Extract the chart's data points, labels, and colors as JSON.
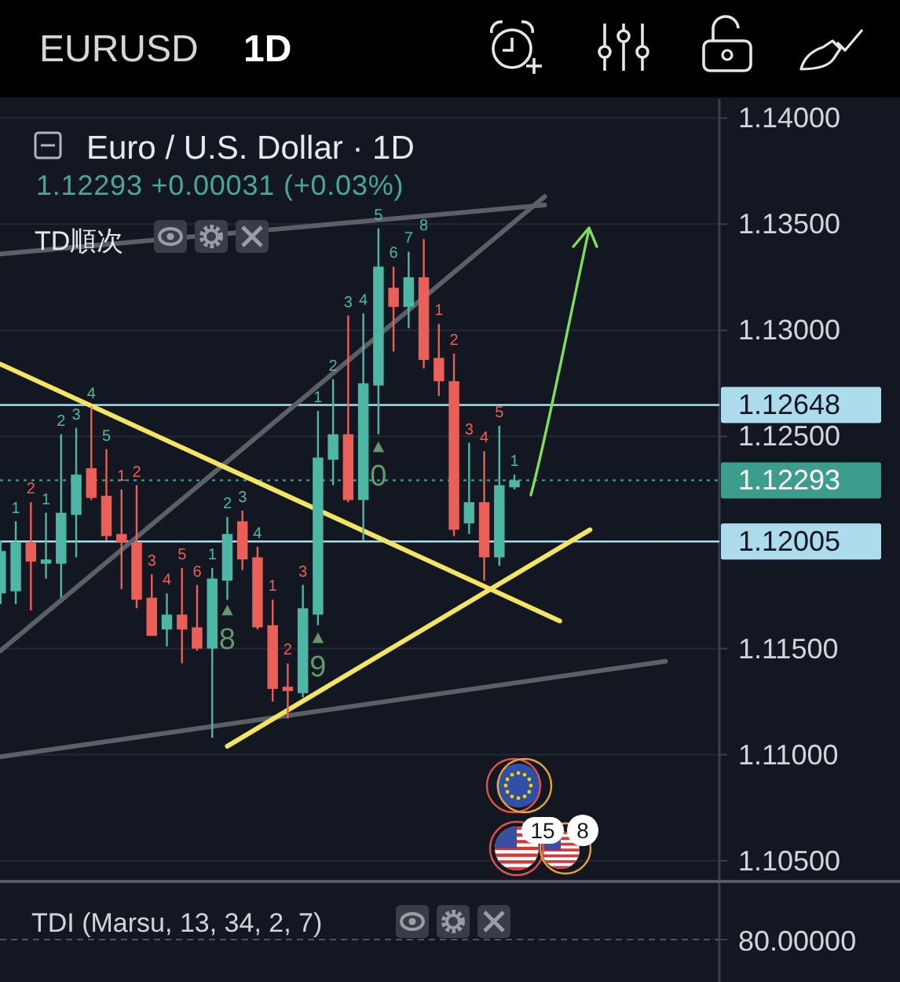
{
  "chart_data": [
    {
      "type": "candlestick",
      "title": "Euro / U.S. Dollar · 1D",
      "subtitle": "1.12293 +0.00031 (+0.03%)",
      "annotations": [
        "EURUSD",
        "1D",
        "TD順次",
        "15",
        "8",
        "8",
        "9",
        "0"
      ],
      "categories": [
        null,
        null,
        null,
        null,
        null,
        null,
        null,
        null,
        null,
        null,
        null,
        null,
        null,
        null,
        null,
        null,
        null,
        null,
        null,
        null,
        null,
        null,
        null,
        null,
        null,
        null,
        null,
        null,
        null,
        null,
        null,
        null,
        null,
        null,
        null,
        null,
        null,
        null,
        null,
        null,
        null,
        null,
        null,
        null,
        null,
        null,
        null,
        null
      ],
      "ylim": [
        1.1041,
        1.1409
      ],
      "yticks": [
        {
          "value": 1.105,
          "label": "1.10500"
        },
        {
          "value": 1.11,
          "label": "1.11000"
        },
        {
          "value": 1.115,
          "label": "1.11500"
        },
        {
          "value": 1.125,
          "label": "1.12500"
        },
        {
          "value": 1.13,
          "label": "1.13000"
        },
        {
          "value": 1.135,
          "label": "1.13500"
        },
        {
          "value": 1.14,
          "label": "1.14000"
        }
      ],
      "tick_labels": "y",
      "grid": "y",
      "ref_lines": [
        {
          "axis": "y",
          "value": 1.12648,
          "label": "1.12648",
          "color": "#acdcec"
        },
        {
          "axis": "y",
          "value": 1.12293,
          "label": "1.12293",
          "color": "#3c9d8c",
          "line_style": "dotted"
        },
        {
          "axis": "y",
          "value": 1.12005,
          "label": "1.12005",
          "color": "#acdcec"
        }
      ],
      "series": [
        {
          "type": "line",
          "color": "#5c5f68",
          "values": [
            1.1336,
            null,
            null,
            null,
            null,
            null,
            null,
            null,
            null,
            null,
            null,
            null,
            null,
            null,
            null,
            null,
            null,
            null,
            null,
            null,
            null,
            null,
            null,
            null,
            null,
            null,
            null,
            null,
            null,
            null,
            null,
            null,
            null,
            null,
            null,
            null,
            1.1359,
            null,
            null,
            null,
            null,
            null,
            null,
            null,
            null,
            null,
            null,
            null
          ]
        },
        {
          "type": "line",
          "color": "#5c5f68",
          "values": [
            1.1149,
            null,
            null,
            null,
            null,
            null,
            null,
            null,
            null,
            null,
            null,
            null,
            null,
            null,
            null,
            null,
            null,
            null,
            null,
            null,
            null,
            null,
            null,
            null,
            null,
            null,
            null,
            null,
            null,
            null,
            null,
            null,
            null,
            null,
            null,
            null,
            1.1363,
            null,
            null,
            null,
            null,
            null,
            null,
            null,
            null,
            null,
            null,
            null
          ]
        },
        {
          "type": "line",
          "color": "#5c5f68",
          "values": [
            1.1099,
            null,
            null,
            null,
            null,
            null,
            null,
            null,
            null,
            null,
            null,
            null,
            null,
            null,
            null,
            null,
            null,
            null,
            null,
            null,
            null,
            null,
            null,
            null,
            null,
            null,
            null,
            null,
            null,
            null,
            null,
            null,
            null,
            null,
            null,
            null,
            null,
            null,
            null,
            null,
            null,
            null,
            null,
            null,
            1.1144,
            null,
            null,
            null
          ]
        },
        {
          "type": "line",
          "color": "#f3e462",
          "values": [
            1.1284,
            null,
            null,
            null,
            null,
            null,
            null,
            null,
            null,
            null,
            null,
            null,
            null,
            null,
            null,
            null,
            null,
            null,
            null,
            null,
            null,
            null,
            null,
            null,
            null,
            null,
            null,
            null,
            null,
            null,
            null,
            null,
            null,
            null,
            null,
            null,
            null,
            1.1163,
            null,
            null,
            null,
            null,
            null,
            null,
            null,
            null,
            null,
            null
          ]
        },
        {
          "type": "line",
          "color": "#f3e462",
          "values": [
            null,
            null,
            null,
            null,
            null,
            null,
            null,
            null,
            null,
            null,
            null,
            null,
            null,
            null,
            null,
            1.1104,
            null,
            null,
            null,
            null,
            null,
            null,
            null,
            null,
            null,
            null,
            null,
            null,
            null,
            null,
            null,
            null,
            null,
            null,
            null,
            null,
            null,
            null,
            null,
            1.1206,
            null,
            null,
            null,
            null,
            null,
            null,
            null,
            null
          ]
        },
        {
          "type": "scatter",
          "marker": "triangle",
          "color": "#5f9a68",
          "values": [
            null,
            null,
            null,
            null,
            null,
            null,
            null,
            null,
            null,
            null,
            null,
            null,
            null,
            null,
            null,
            1.1168,
            null,
            null,
            null,
            null,
            null,
            1.1155,
            null,
            null,
            null,
            1.1245,
            null,
            null,
            null,
            null,
            null,
            null,
            null,
            null,
            null,
            null,
            null,
            null,
            null,
            null,
            null,
            null,
            null,
            null,
            null,
            null,
            null,
            null
          ]
        },
        {
          "type": "candlestick",
          "ohlc": [
            [
              1.1176,
              1.1201,
              1.1171,
              1.1196
            ],
            [
              1.1177,
              1.121,
              1.1171,
              1.12
            ],
            [
              1.12,
              1.1219,
              1.1168,
              1.1191
            ],
            [
              1.119,
              1.1214,
              1.1183,
              1.1192
            ],
            [
              1.119,
              1.1251,
              1.1174,
              1.1214
            ],
            [
              1.1213,
              1.1254,
              1.1193,
              1.1232
            ],
            [
              1.1235,
              1.1264,
              1.122,
              1.1221
            ],
            [
              1.1222,
              1.1244,
              1.1201,
              1.1203
            ],
            [
              1.1204,
              1.1225,
              1.1178,
              1.12
            ],
            [
              1.12,
              1.1227,
              1.1169,
              1.1173
            ],
            [
              1.1174,
              1.1185,
              1.1156,
              1.1156
            ],
            [
              1.1159,
              1.1176,
              1.1151,
              1.1166
            ],
            [
              1.1166,
              1.1188,
              1.1143,
              1.1159
            ],
            [
              1.116,
              1.118,
              1.1149,
              1.115
            ],
            [
              1.115,
              1.1188,
              1.1108,
              1.1183
            ],
            [
              1.1182,
              1.1212,
              1.1173,
              1.1204
            ],
            [
              1.121,
              1.1215,
              1.1187,
              1.1192
            ],
            [
              1.1193,
              1.1198,
              1.1159,
              1.116
            ],
            [
              1.1161,
              1.1173,
              1.1125,
              1.1131
            ],
            [
              1.1132,
              1.1143,
              1.1117,
              1.113
            ],
            [
              1.1129,
              1.118,
              1.1127,
              1.1169
            ],
            [
              1.1166,
              1.1262,
              1.1161,
              1.124
            ],
            [
              1.1239,
              1.1277,
              1.1227,
              1.1251
            ],
            [
              1.1251,
              1.1307,
              1.1219,
              1.122
            ],
            [
              1.122,
              1.1308,
              1.1201,
              1.1275
            ],
            [
              1.1274,
              1.1348,
              1.1251,
              1.133
            ],
            [
              1.132,
              1.133,
              1.129,
              1.1311
            ],
            [
              1.1311,
              1.1337,
              1.1301,
              1.1325
            ],
            [
              1.1325,
              1.1343,
              1.1282,
              1.1286
            ],
            [
              1.1287,
              1.1303,
              1.1269,
              1.1276
            ],
            [
              1.1276,
              1.1289,
              1.1203,
              1.1206
            ],
            [
              1.1209,
              1.1247,
              1.1204,
              1.1219
            ],
            [
              1.1219,
              1.1243,
              1.1182,
              1.1193
            ],
            [
              1.1193,
              1.1255,
              1.1189,
              1.1227
            ],
            [
              1.1226,
              1.1232,
              1.1225,
              1.12293
            ],
            null,
            null,
            null,
            null,
            null,
            null,
            null,
            null,
            null,
            null,
            null,
            null,
            null
          ],
          "colors": [
            "#4db6a4",
            "#4db6a4",
            "#ea5f58",
            "#4db6a4",
            "#4db6a4",
            "#4db6a4",
            "#ea5f58",
            "#ea5f58",
            "#ea5f58",
            "#ea5f58",
            "#ea5f58",
            "#4db6a4",
            "#ea5f58",
            "#ea5f58",
            "#4db6a4",
            "#4db6a4",
            "#ea5f58",
            "#ea5f58",
            "#ea5f58",
            "#ea5f58",
            "#4db6a4",
            "#4db6a4",
            "#4db6a4",
            "#ea5f58",
            "#4db6a4",
            "#4db6a4",
            "#ea5f58",
            "#4db6a4",
            "#ea5f58",
            "#ea5f58",
            "#ea5f58",
            "#4db6a4",
            "#ea5f58",
            "#4db6a4",
            "#4db6a4",
            null,
            null,
            null,
            null,
            null,
            null,
            null,
            null,
            null,
            null,
            null,
            null,
            null
          ],
          "value_labels": [
            null,
            "1",
            "2",
            "1",
            "2",
            "3",
            "4",
            "5",
            "1",
            "2",
            "3",
            "4",
            "5",
            "6",
            "1",
            "2",
            "3",
            "4",
            "1",
            "2",
            "3",
            "1",
            "2",
            "3",
            "4",
            "5",
            "6",
            "7",
            "8",
            "1",
            "2",
            "3",
            "4",
            "5",
            "1",
            null,
            null,
            null,
            null,
            null,
            null,
            null,
            null,
            null,
            null,
            null,
            null,
            null
          ]
        }
      ]
    },
    {
      "type": "other",
      "title": "TDI (Marsu, 13, 34, 2, 7)",
      "annotations": [
        "80.00000"
      ]
    }
  ]
}
